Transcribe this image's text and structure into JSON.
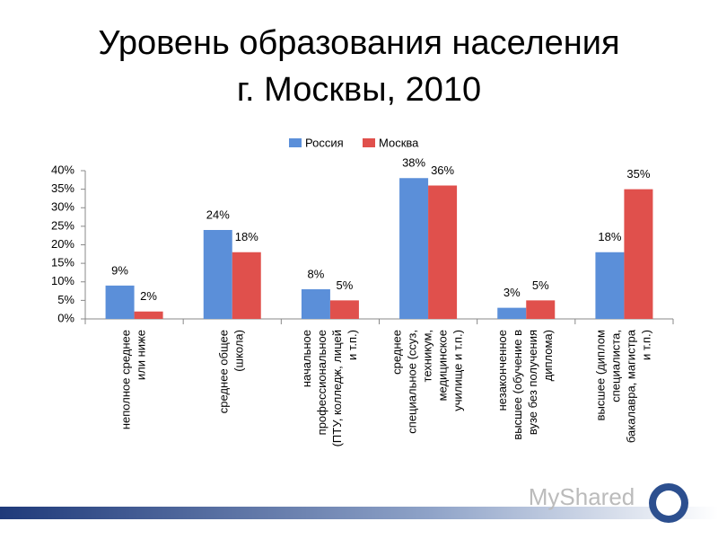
{
  "chart_data": {
    "type": "bar",
    "title": [
      "Уровень образования населения",
      "г. Москвы, 2010"
    ],
    "categories": [
      [
        "неполное среднее",
        "или ниже"
      ],
      [
        "среднее общее",
        "(школа)"
      ],
      [
        "начальное",
        "профессиональное",
        "(ПТУ, колледж, лицей",
        "и т.п.)"
      ],
      [
        "среднее",
        "специальное (ссуз,",
        "техникум,",
        "медицинское",
        "училище и т.п.)"
      ],
      [
        "незаконченное",
        "высшее (обучение в",
        "вузе без получения",
        "диплома)"
      ],
      [
        "высшее (диплом",
        "специалиста,",
        "бакалавра, магистра",
        "и т.п.)"
      ]
    ],
    "series": [
      {
        "name": "Россия",
        "color": "#5b8fd9",
        "values": [
          9,
          24,
          8,
          38,
          3,
          18
        ],
        "value_labels": [
          "9%",
          "24%",
          "8%",
          "38%",
          "3%",
          "18%"
        ]
      },
      {
        "name": "Москва",
        "color": "#e0504c",
        "values": [
          2,
          18,
          5,
          36,
          5,
          35
        ],
        "value_labels": [
          "2%",
          "18%",
          "5%",
          "36%",
          "5%",
          "35%"
        ]
      }
    ],
    "ylim": [
      0,
      40
    ],
    "yticks": [
      {
        "value": 0,
        "label": "0%"
      },
      {
        "value": 5,
        "label": "5%"
      },
      {
        "value": 10,
        "label": "10%"
      },
      {
        "value": 15,
        "label": "15%"
      },
      {
        "value": 20,
        "label": "20%"
      },
      {
        "value": 25,
        "label": "25%"
      },
      {
        "value": 30,
        "label": "30%"
      },
      {
        "value": 35,
        "label": "35%"
      },
      {
        "value": 40,
        "label": "40%"
      }
    ],
    "legend": "top",
    "watermark": "MyShared"
  }
}
